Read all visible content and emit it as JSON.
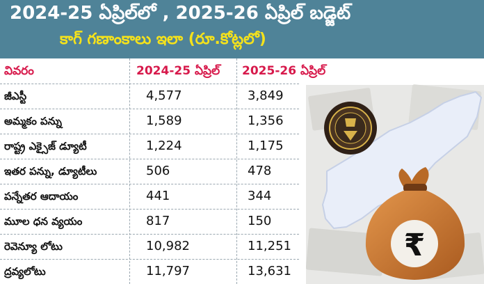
{
  "title": {
    "line1": "2024-25 ఏప్రిల్‌లో , 2025-26 ఏప్రిల్ బడ్జెట్",
    "line2": "కాగ్ గణాంకాలు ఇలా (రూ.కోట్లలో)"
  },
  "table": {
    "headers": [
      "వివరం",
      "2024-25 ఏప్రిల్",
      "2025-26 ఏప్రిల్"
    ],
    "rows": [
      {
        "label": "జీఎస్టీ",
        "v2024": "4,577",
        "v2025": "3,849"
      },
      {
        "label": "అమ్మకం పన్ను",
        "v2024": "1,589",
        "v2025": "1,356"
      },
      {
        "label": "రాష్ట్ర ఎక్సైజ్ డ్యూటీ",
        "v2024": "1,224",
        "v2025": "1,175"
      },
      {
        "label": "ఇతర పన్ను, డ్యూటీలు",
        "v2024": "506",
        "v2025": "478"
      },
      {
        "label": "పన్నేతర ఆదాయం",
        "v2024": "441",
        "v2025": "344"
      },
      {
        "label": "మూల ధన వ్యయం",
        "v2024": "817",
        "v2025": "150"
      },
      {
        "label": "రెవెన్యూ లోటు",
        "v2024": "10,982",
        "v2025": "11,251"
      },
      {
        "label": "ద్రవ్యలోటు",
        "v2024": "11,797",
        "v2025": "13,631"
      }
    ]
  },
  "illustration": {
    "icons": [
      "cag-emblem-icon",
      "map-icon",
      "money-bag-icon"
    ],
    "bag_symbol": "₹"
  },
  "colors": {
    "banner": "#4f8398",
    "title_line1": "#ffffff",
    "title_line2": "#f5e21b",
    "table_header": "#d7194b",
    "map_fill": "#e9eef9",
    "bag": "#c4742d"
  }
}
